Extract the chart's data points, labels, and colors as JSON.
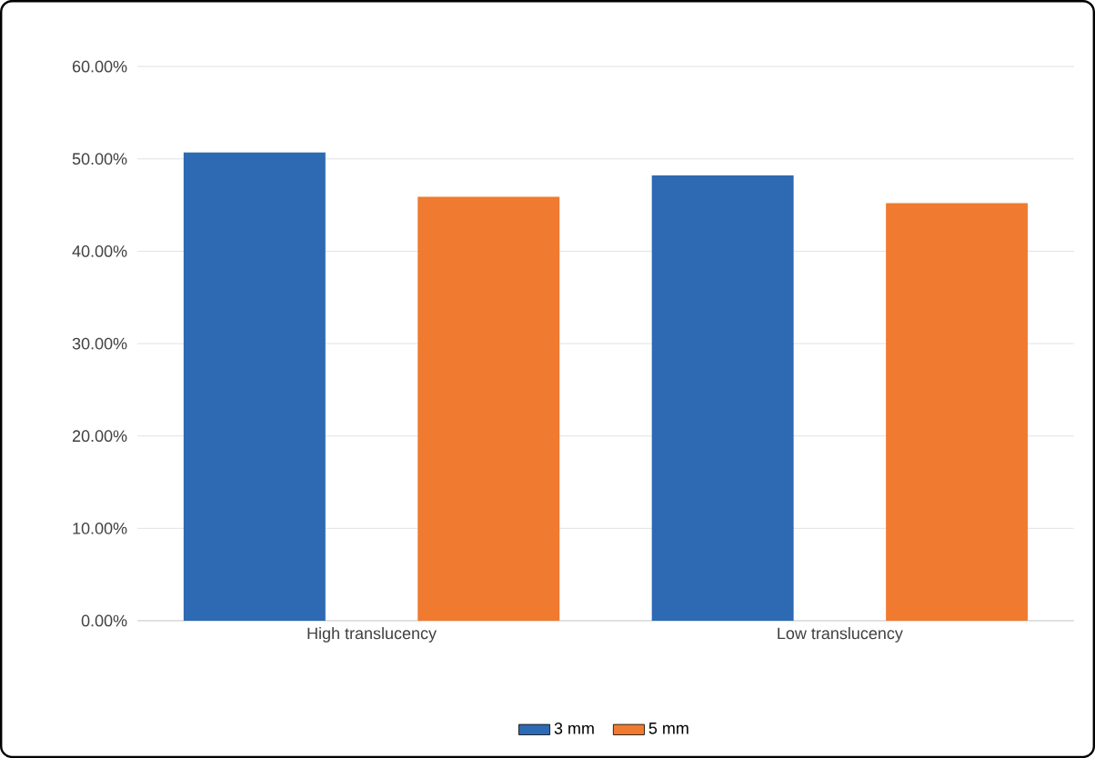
{
  "chart_data": {
    "type": "bar",
    "categories": [
      "High translucency",
      "Low translucency"
    ],
    "series": [
      {
        "name": "3 mm",
        "color": "#2e6ab3",
        "values": [
          50.7,
          48.2
        ]
      },
      {
        "name": "5 mm",
        "color": "#f07a30",
        "values": [
          45.9,
          45.2
        ]
      }
    ],
    "ylim": [
      0,
      60
    ],
    "yticks": [
      {
        "value": 0,
        "label": "0.00%"
      },
      {
        "value": 10,
        "label": "10.00%"
      },
      {
        "value": 20,
        "label": "20.00%"
      },
      {
        "value": 30,
        "label": "30.00%"
      },
      {
        "value": 40,
        "label": "40.00%"
      },
      {
        "value": 50,
        "label": "50.00%"
      },
      {
        "value": 60,
        "label": "60.00%"
      }
    ],
    "grid": "y",
    "legend": "bottom"
  }
}
